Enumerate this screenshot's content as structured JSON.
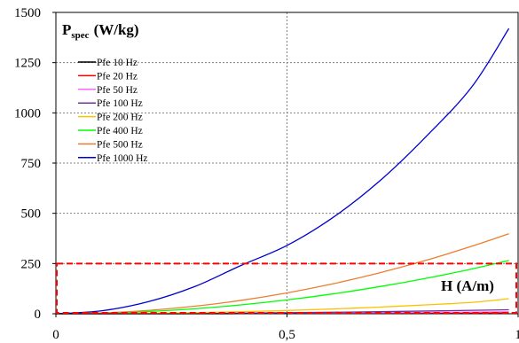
{
  "chart_data": {
    "type": "line",
    "title": "",
    "ylabel": {
      "main": "P",
      "sub": "spec",
      "unit": "(W/kg)"
    },
    "xlabel": "H (A/m)",
    "xlim": [
      0,
      1
    ],
    "ylim": [
      0,
      1500
    ],
    "x_ticks": [
      {
        "value": 0,
        "label": "0"
      },
      {
        "value": 0.5,
        "label": "0,5"
      },
      {
        "value": 1,
        "label": "1"
      }
    ],
    "y_ticks": [
      {
        "value": 0,
        "label": "0"
      },
      {
        "value": 250,
        "label": "250"
      },
      {
        "value": 500,
        "label": "500"
      },
      {
        "value": 750,
        "label": "750"
      },
      {
        "value": 1000,
        "label": "1000"
      },
      {
        "value": 1250,
        "label": "1250"
      },
      {
        "value": 1500,
        "label": "1500"
      }
    ],
    "grid": true,
    "legend_position": "top-left",
    "x": [
      0,
      0.1,
      0.2,
      0.3,
      0.4,
      0.5,
      0.6,
      0.7,
      0.8,
      0.9,
      0.98
    ],
    "series": [
      {
        "name": "Pfe 10 Hz",
        "color": "#000000",
        "values": [
          0,
          0.0,
          0.1,
          0.2,
          0.4,
          0.5,
          0.8,
          1.0,
          1.3,
          1.7,
          2.0
        ]
      },
      {
        "name": "Pfe 20 Hz",
        "color": "#ff0000",
        "values": [
          0,
          0.1,
          0.3,
          0.5,
          0.9,
          1.4,
          2.0,
          2.6,
          3.4,
          4.3,
          5.0
        ]
      },
      {
        "name": "Pfe 50 Hz",
        "color": "#ff66ff",
        "values": [
          0,
          0.1,
          0.4,
          0.9,
          1.6,
          2.6,
          3.7,
          5.0,
          6.6,
          8.3,
          10.0
        ]
      },
      {
        "name": "Pfe 100 Hz",
        "color": "#7030a0",
        "values": [
          0,
          0.2,
          0.8,
          1.9,
          3.4,
          5.2,
          7.6,
          10.3,
          13.5,
          17.0,
          20.0
        ]
      },
      {
        "name": "Pfe 200 Hz",
        "color": "#ffc000",
        "values": [
          0,
          0.6,
          2.4,
          5.6,
          10.2,
          16.3,
          24.0,
          33.2,
          44.1,
          56.7,
          75.0
        ]
      },
      {
        "name": "Pfe 400 Hz",
        "color": "#00ff00",
        "values": [
          0,
          2.8,
          11.0,
          24.8,
          44.0,
          68.8,
          99.0,
          134.8,
          176.0,
          222.8,
          265.0
        ]
      },
      {
        "name": "Pfe 500 Hz",
        "color": "#ed7d31",
        "values": [
          0,
          4.2,
          16.6,
          37.4,
          66.4,
          103.8,
          149.4,
          203.4,
          265.6,
          336.2,
          398.0
        ]
      },
      {
        "name": "Pfe 1000 Hz",
        "color": "#0000cc",
        "values": [
          0,
          15.0,
          60.0,
          135.0,
          240.0,
          340.0,
          480.0,
          660.0,
          880.0,
          1130.0,
          1420.0
        ]
      }
    ],
    "annotation": {
      "type": "dashed-rectangle",
      "color": "#ff0000",
      "x_range": [
        0,
        1
      ],
      "y_range": [
        0,
        250
      ]
    }
  }
}
